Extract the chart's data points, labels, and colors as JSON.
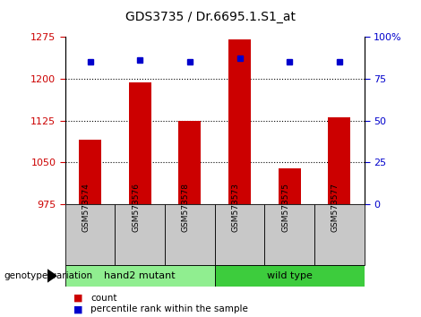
{
  "title": "GDS3735 / Dr.6695.1.S1_at",
  "samples": [
    "GSM573574",
    "GSM573576",
    "GSM573578",
    "GSM573573",
    "GSM573575",
    "GSM573577"
  ],
  "counts": [
    1090,
    1193,
    1125,
    1270,
    1040,
    1130
  ],
  "percentile_ranks": [
    85,
    86,
    85,
    87,
    85,
    85
  ],
  "groups": [
    "hand2 mutant",
    "hand2 mutant",
    "hand2 mutant",
    "wild type",
    "wild type",
    "wild type"
  ],
  "group_colors": {
    "hand2 mutant": "#90EE90",
    "wild type": "#3DCC3D"
  },
  "ylim_left": [
    975,
    1275
  ],
  "yticks_left": [
    975,
    1050,
    1125,
    1200,
    1275
  ],
  "ylim_right": [
    0,
    100
  ],
  "yticks_right": [
    0,
    25,
    50,
    75,
    100
  ],
  "bar_color": "#CC0000",
  "dot_color": "#0000CC",
  "label_color_left": "#CC0000",
  "label_color_right": "#0000CC",
  "sample_box_color": "#C8C8C8",
  "fig_width": 4.7,
  "fig_height": 3.54,
  "dpi": 100
}
